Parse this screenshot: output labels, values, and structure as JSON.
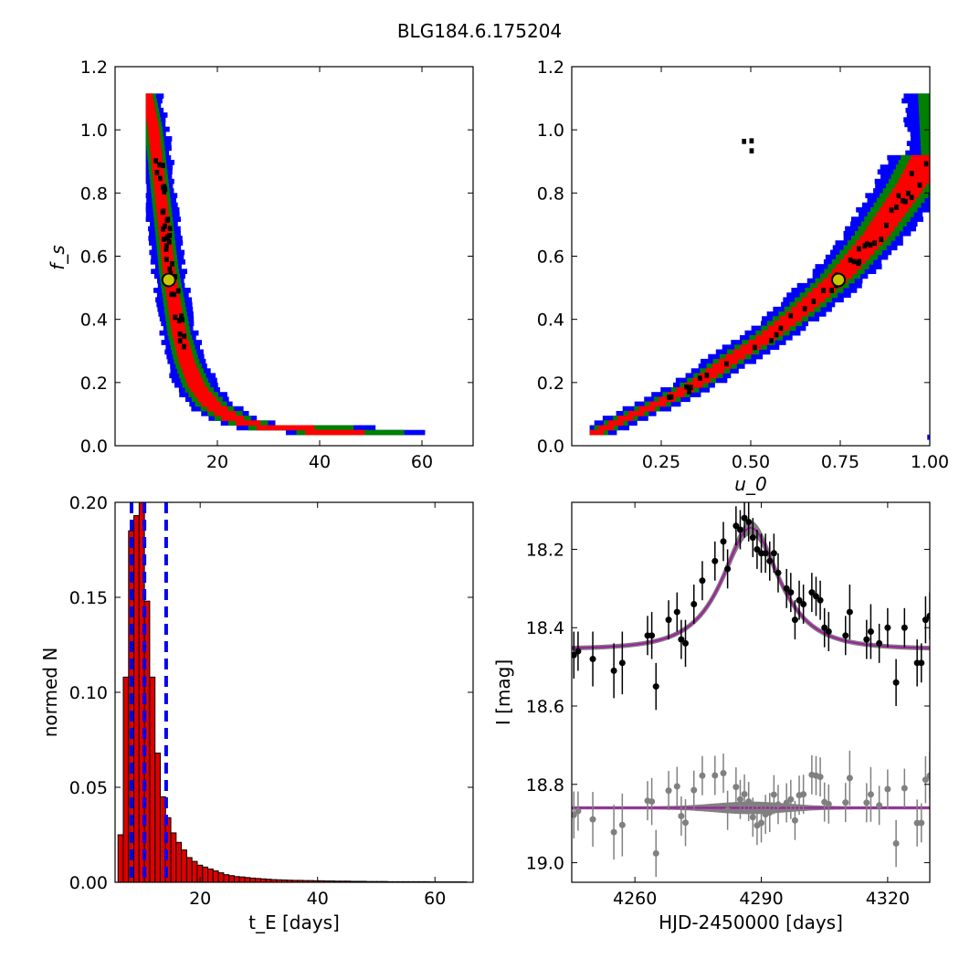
{
  "figure_title": "BLG184.6.175204",
  "colors": {
    "contour_outer": "#0000ff",
    "contour_mid": "#007f00",
    "contour_inner": "#ff0000",
    "contour_core": "#000000",
    "best_marker_fill": "#c8c800",
    "hist_bar": "#dd0000",
    "hist_dashed": "#0000ee",
    "model_line": "#a020a0",
    "model_band": "#808080",
    "residual_points": "#808080",
    "data_points": "#000000"
  },
  "chart_data": [
    {
      "id": "tE_fs",
      "type": "heatmap",
      "title": "",
      "xlabel": "",
      "ylabel": "f_s",
      "xlim": [
        0,
        70
      ],
      "ylim": [
        0,
        1.2
      ],
      "xticks": [
        20,
        40,
        60
      ],
      "yticks": [
        0.0,
        0.2,
        0.4,
        0.6,
        0.8,
        1.0,
        1.2
      ],
      "ytick_labels": [
        "0.0",
        "0.2",
        "0.4",
        "0.6",
        "0.8",
        "1.0",
        "1.2"
      ],
      "xtick_labels": [
        "20",
        "40",
        "60"
      ],
      "best_fit": {
        "x": 10.5,
        "y": 0.525
      },
      "ridge": [
        [
          6.3,
          1.1
        ],
        [
          7.5,
          1.0
        ],
        [
          8.5,
          0.85
        ],
        [
          9.5,
          0.7
        ],
        [
          10.5,
          0.55
        ],
        [
          11.5,
          0.45
        ],
        [
          12.5,
          0.35
        ],
        [
          14,
          0.26
        ],
        [
          16,
          0.18
        ],
        [
          19,
          0.12
        ],
        [
          23,
          0.08
        ],
        [
          28,
          0.055
        ],
        [
          35,
          0.04
        ],
        [
          45,
          0.03
        ],
        [
          55,
          0.028
        ],
        [
          66,
          0.028
        ]
      ],
      "width_profile": [
        [
          6,
          2.2
        ],
        [
          10,
          2.4
        ],
        [
          14,
          3.2
        ],
        [
          20,
          4.2
        ],
        [
          30,
          5.5
        ],
        [
          45,
          6
        ],
        [
          66,
          6
        ]
      ]
    },
    {
      "id": "u0_fs",
      "type": "heatmap",
      "title": "",
      "xlabel": "u_0",
      "ylabel": "",
      "xlim": [
        0.0,
        1.0
      ],
      "ylim": [
        0,
        1.2
      ],
      "xticks": [
        0.25,
        0.5,
        0.75,
        1.0
      ],
      "xtick_labels": [
        "0.25",
        "0.50",
        "0.75",
        "1.00"
      ],
      "yticks": [
        0.0,
        0.2,
        0.4,
        0.6,
        0.8,
        1.0,
        1.2
      ],
      "ytick_labels": [
        "0.0",
        "0.2",
        "0.4",
        "0.6",
        "0.8",
        "1.0",
        "1.2"
      ],
      "best_fit": {
        "x": 0.745,
        "y": 0.525
      },
      "ridge": [
        [
          0.06,
          0.03
        ],
        [
          0.15,
          0.08
        ],
        [
          0.25,
          0.13
        ],
        [
          0.35,
          0.19
        ],
        [
          0.45,
          0.27
        ],
        [
          0.55,
          0.34
        ],
        [
          0.65,
          0.43
        ],
        [
          0.75,
          0.53
        ],
        [
          0.85,
          0.66
        ],
        [
          0.95,
          0.82
        ],
        [
          1.0,
          0.92
        ]
      ]
    },
    {
      "id": "tE_hist",
      "type": "bar",
      "title": "",
      "xlabel": "t_E [days]",
      "ylabel": "normed N",
      "xlim": [
        5.5,
        66.5
      ],
      "ylim": [
        0,
        0.2
      ],
      "xticks": [
        20,
        40,
        60
      ],
      "xtick_labels": [
        "20",
        "40",
        "60"
      ],
      "yticks": [
        0.0,
        0.05,
        0.1,
        0.15,
        0.2
      ],
      "ytick_labels": [
        "0.00",
        "0.05",
        "0.10",
        "0.15",
        "0.20"
      ],
      "bin_start": 6,
      "bin_width": 0.9,
      "values": [
        0.025,
        0.108,
        0.185,
        0.193,
        0.2,
        0.148,
        0.108,
        0.068,
        0.045,
        0.034,
        0.026,
        0.021,
        0.017,
        0.013,
        0.011,
        0.009,
        0.008,
        0.007,
        0.006,
        0.005,
        0.004,
        0.0035,
        0.003,
        0.0028,
        0.0025,
        0.0022,
        0.002,
        0.0018,
        0.0016,
        0.0014,
        0.0013,
        0.0012,
        0.0011,
        0.001,
        0.001,
        0.0009,
        0.0009,
        0.0008,
        0.0008,
        0.0007,
        0.0007,
        0.0006,
        0.0006,
        0.0006,
        0.0005,
        0.0005,
        0.0005,
        0.0004,
        0.0004,
        0.0004,
        0.0004,
        0.0003,
        0.0003,
        0.0003,
        0.0003,
        0.0003,
        0.0003,
        0.0003,
        0.0003,
        0.0002,
        0.0002,
        0.0002,
        0.0002,
        0.0002,
        0.0002,
        0.0002
      ],
      "vlines": [
        8.3,
        10.5,
        14.2
      ]
    },
    {
      "id": "lightcurve",
      "type": "scatter",
      "title": "",
      "xlabel": "HJD-2450000 [days]",
      "ylabel": "I [mag]",
      "xlim": [
        4245,
        4330
      ],
      "ylim": [
        19.05,
        18.08
      ],
      "xticks": [
        4260,
        4290,
        4320
      ],
      "xtick_labels": [
        "4260",
        "4290",
        "4320"
      ],
      "yticks": [
        18.2,
        18.4,
        18.6,
        18.8,
        19.0
      ],
      "ytick_labels": [
        "18.2",
        "18.4",
        "18.6",
        "18.8",
        "19.0"
      ],
      "model": {
        "t0": 4287.5,
        "tE": 10.5,
        "u0": 0.745,
        "fs": 0.525,
        "base": 18.455
      },
      "residual_offset": 18.86,
      "points": [
        [
          4245.5,
          18.47,
          0.06
        ],
        [
          4246.5,
          18.46,
          0.05
        ],
        [
          4250,
          18.48,
          0.07
        ],
        [
          4255,
          18.51,
          0.07
        ],
        [
          4257,
          18.49,
          0.08
        ],
        [
          4263,
          18.42,
          0.05
        ],
        [
          4264,
          18.42,
          0.06
        ],
        [
          4265,
          18.55,
          0.06
        ],
        [
          4268,
          18.38,
          0.05
        ],
        [
          4270,
          18.36,
          0.05
        ],
        [
          4271,
          18.43,
          0.05
        ],
        [
          4272,
          18.44,
          0.06
        ],
        [
          4274,
          18.34,
          0.05
        ],
        [
          4276,
          18.28,
          0.05
        ],
        [
          4279,
          18.23,
          0.05
        ],
        [
          4281,
          18.18,
          0.05
        ],
        [
          4282,
          18.25,
          0.05
        ],
        [
          4284,
          18.14,
          0.05
        ],
        [
          4285,
          18.15,
          0.05
        ],
        [
          4286,
          18.12,
          0.05
        ],
        [
          4287,
          18.13,
          0.05
        ],
        [
          4288,
          18.17,
          0.05
        ],
        [
          4289,
          18.2,
          0.05
        ],
        [
          4290,
          18.21,
          0.05
        ],
        [
          4291,
          18.21,
          0.05
        ],
        [
          4292,
          18.23,
          0.05
        ],
        [
          4293,
          18.21,
          0.05
        ],
        [
          4294,
          18.26,
          0.05
        ],
        [
          4296,
          18.3,
          0.05
        ],
        [
          4297,
          18.31,
          0.05
        ],
        [
          4298,
          18.38,
          0.05
        ],
        [
          4299,
          18.33,
          0.05
        ],
        [
          4300,
          18.34,
          0.05
        ],
        [
          4302,
          18.31,
          0.05
        ],
        [
          4303,
          18.32,
          0.05
        ],
        [
          4304,
          18.33,
          0.05
        ],
        [
          4305,
          18.4,
          0.05
        ],
        [
          4306,
          18.41,
          0.05
        ],
        [
          4310,
          18.42,
          0.05
        ],
        [
          4311,
          18.36,
          0.07
        ],
        [
          4315,
          18.43,
          0.05
        ],
        [
          4316,
          18.41,
          0.07
        ],
        [
          4318,
          18.44,
          0.05
        ],
        [
          4320,
          18.4,
          0.05
        ],
        [
          4322,
          18.54,
          0.06
        ],
        [
          4324,
          18.4,
          0.05
        ],
        [
          4327,
          18.49,
          0.06
        ],
        [
          4328,
          18.49,
          0.05
        ],
        [
          4329,
          18.38,
          0.06
        ],
        [
          4330,
          18.37,
          0.06
        ]
      ]
    }
  ]
}
